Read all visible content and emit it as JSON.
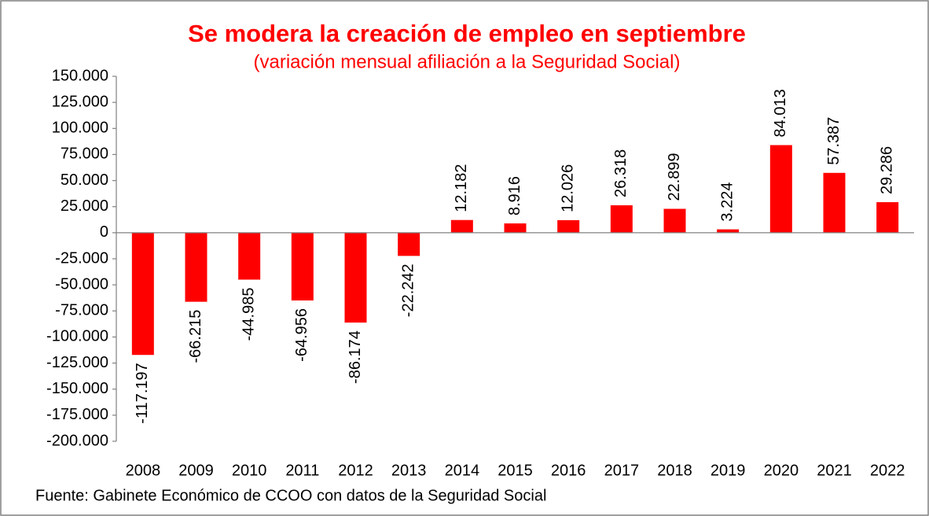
{
  "chart_data": {
    "type": "bar",
    "title": "Se modera la creación de empleo en septiembre",
    "subtitle": "(variación mensual afiliación a la Seguridad Social)",
    "source": "Fuente: Gabinete Económico de CCOO con datos de la Seguridad Social",
    "categories": [
      "2008",
      "2009",
      "2010",
      "2011",
      "2012",
      "2013",
      "2014",
      "2015",
      "2016",
      "2017",
      "2018",
      "2019",
      "2020",
      "2021",
      "2022"
    ],
    "values": [
      -117197,
      -66215,
      -44985,
      -64956,
      -86174,
      -22242,
      12182,
      8916,
      12026,
      26318,
      22899,
      3224,
      84013,
      57387,
      29286
    ],
    "value_labels": [
      "-117.197",
      "-66.215",
      "-44.985",
      "-64.956",
      "-86.174",
      "-22.242",
      "12.182",
      "8.916",
      "12.026",
      "26.318",
      "22.899",
      "3.224",
      "84.013",
      "57.387",
      "29.286"
    ],
    "color": "#ff0000",
    "ylim": [
      -200000,
      150000
    ],
    "yticks": [
      {
        "value": -200000,
        "label": "-200.000"
      },
      {
        "value": -175000,
        "label": "-175.000"
      },
      {
        "value": -150000,
        "label": "-150.000"
      },
      {
        "value": -125000,
        "label": "-125.000"
      },
      {
        "value": -100000,
        "label": "-100.000"
      },
      {
        "value": -75000,
        "label": "-75.000"
      },
      {
        "value": -50000,
        "label": "-50.000"
      },
      {
        "value": -25000,
        "label": "-25.000"
      },
      0,
      {
        "value": 25000,
        "label": "25.000"
      },
      {
        "value": 50000,
        "label": "50.000"
      },
      {
        "value": 75000,
        "label": "75.000"
      },
      {
        "value": 100000,
        "label": "100.000"
      },
      {
        "value": 125000,
        "label": "125.000"
      },
      {
        "value": 150000,
        "label": "150.000"
      }
    ],
    "grid": false
  }
}
